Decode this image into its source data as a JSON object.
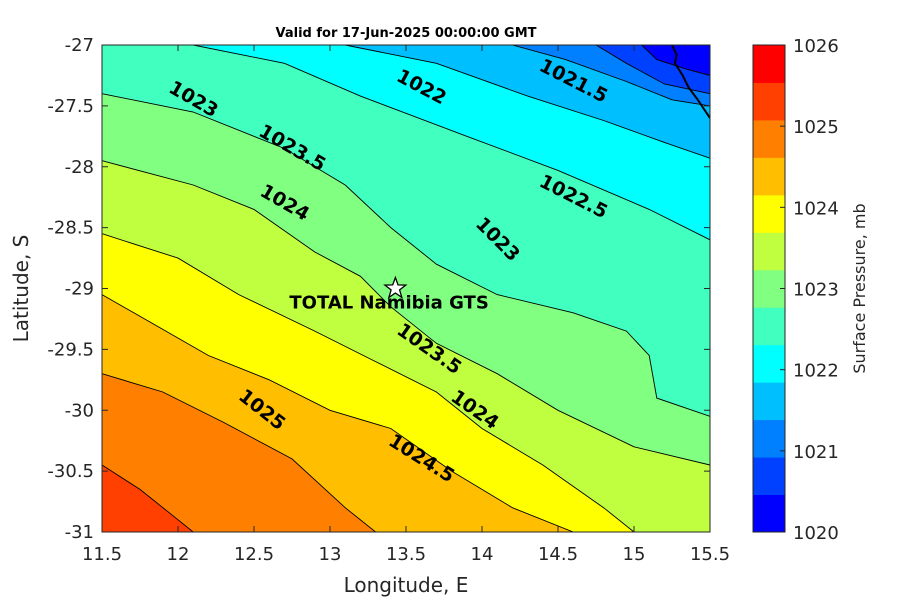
{
  "chart_data": {
    "type": "contour",
    "title": "Valid for 17-Jun-2025 00:00:00 GMT",
    "xlabel": "Longitude, E",
    "ylabel": "Latitude, S",
    "xlim": [
      11.5,
      15.5
    ],
    "ylim": [
      -31,
      -27
    ],
    "xticks": [
      "11.5",
      "12",
      "12.5",
      "13",
      "13.5",
      "14",
      "14.5",
      "15",
      "15.5"
    ],
    "yticks": [
      "-27",
      "-27.5",
      "-28",
      "-28.5",
      "-29",
      "-29.5",
      "-30",
      "-30.5",
      "-31"
    ],
    "colorbar": {
      "label": "Surface Pressure, mb",
      "range": [
        1020,
        1026
      ],
      "ticks": [
        "1020",
        "1021",
        "1022",
        "1023",
        "1024",
        "1025",
        "1026"
      ],
      "levels": [
        {
          "min": 1020.0,
          "max": 1020.5,
          "color": "#0000ff"
        },
        {
          "min": 1020.5,
          "max": 1021.0,
          "color": "#0040ff"
        },
        {
          "min": 1021.0,
          "max": 1021.5,
          "color": "#0080ff"
        },
        {
          "min": 1021.5,
          "max": 1022.0,
          "color": "#00bfff"
        },
        {
          "min": 1022.0,
          "max": 1022.5,
          "color": "#00ffff"
        },
        {
          "min": 1022.5,
          "max": 1023.0,
          "color": "#40ffbf"
        },
        {
          "min": 1023.0,
          "max": 1023.5,
          "color": "#80ff80"
        },
        {
          "min": 1023.5,
          "max": 1024.0,
          "color": "#bfff40"
        },
        {
          "min": 1024.0,
          "max": 1024.5,
          "color": "#ffff00"
        },
        {
          "min": 1024.5,
          "max": 1025.0,
          "color": "#ffbf00"
        },
        {
          "min": 1025.0,
          "max": 1025.5,
          "color": "#ff8000"
        },
        {
          "min": 1025.5,
          "max": 1026.0,
          "color": "#ff4000"
        },
        {
          "min": 1026.0,
          "max": 1026.5,
          "color": "#ff0000"
        }
      ]
    },
    "contours": [
      {
        "level": 1020.5,
        "points": [
          [
            15.05,
            -27.0
          ],
          [
            15.15,
            -27.12
          ],
          [
            15.35,
            -27.2
          ],
          [
            15.5,
            -27.25
          ]
        ]
      },
      {
        "level": 1021.0,
        "points": [
          [
            14.75,
            -27.0
          ],
          [
            14.95,
            -27.15
          ],
          [
            15.2,
            -27.32
          ],
          [
            15.5,
            -27.4
          ]
        ]
      },
      {
        "level": 1021.5,
        "points": [
          [
            14.2,
            -27.0
          ],
          [
            14.55,
            -27.12
          ],
          [
            14.95,
            -27.3
          ],
          [
            15.25,
            -27.45
          ],
          [
            15.5,
            -27.5
          ]
        ]
      },
      {
        "level": 1022.0,
        "points": [
          [
            13.1,
            -27.0
          ],
          [
            13.7,
            -27.15
          ],
          [
            14.3,
            -27.42
          ],
          [
            14.8,
            -27.62
          ],
          [
            15.2,
            -27.8
          ],
          [
            15.5,
            -27.93
          ]
        ]
      },
      {
        "level": 1022.5,
        "points": [
          [
            12.1,
            -27.0
          ],
          [
            12.7,
            -27.15
          ],
          [
            13.2,
            -27.42
          ],
          [
            13.9,
            -27.75
          ],
          [
            14.5,
            -28.03
          ],
          [
            15.1,
            -28.35
          ],
          [
            15.5,
            -28.6
          ]
        ]
      },
      {
        "level": 1023.0,
        "points": [
          [
            11.5,
            -27.4
          ],
          [
            12.1,
            -27.55
          ],
          [
            12.7,
            -27.85
          ],
          [
            13.1,
            -28.15
          ],
          [
            13.4,
            -28.5
          ],
          [
            13.7,
            -28.8
          ],
          [
            14.1,
            -29.05
          ],
          [
            14.6,
            -29.2
          ],
          [
            14.95,
            -29.35
          ],
          [
            15.1,
            -29.55
          ],
          [
            15.15,
            -29.9
          ],
          [
            15.5,
            -30.05
          ]
        ]
      },
      {
        "level": 1023.5,
        "points": [
          [
            11.5,
            -27.95
          ],
          [
            12.1,
            -28.15
          ],
          [
            12.5,
            -28.35
          ],
          [
            12.9,
            -28.7
          ],
          [
            13.2,
            -28.9
          ],
          [
            13.4,
            -29.15
          ],
          [
            13.7,
            -29.45
          ],
          [
            14.1,
            -29.7
          ],
          [
            14.5,
            -30.0
          ],
          [
            15.0,
            -30.3
          ],
          [
            15.5,
            -30.45
          ]
        ]
      },
      {
        "level": 1024.0,
        "points": [
          [
            11.5,
            -28.55
          ],
          [
            12.0,
            -28.75
          ],
          [
            12.4,
            -29.05
          ],
          [
            12.9,
            -29.35
          ],
          [
            13.3,
            -29.6
          ],
          [
            13.7,
            -29.85
          ],
          [
            14.0,
            -30.15
          ],
          [
            14.4,
            -30.45
          ],
          [
            14.8,
            -30.8
          ],
          [
            15.0,
            -31.0
          ]
        ]
      },
      {
        "level": 1024.5,
        "points": [
          [
            11.5,
            -29.05
          ],
          [
            11.85,
            -29.3
          ],
          [
            12.2,
            -29.55
          ],
          [
            12.6,
            -29.75
          ],
          [
            13.0,
            -30.0
          ],
          [
            13.4,
            -30.15
          ],
          [
            13.8,
            -30.5
          ],
          [
            14.2,
            -30.8
          ],
          [
            14.6,
            -31.0
          ]
        ]
      },
      {
        "level": 1025.0,
        "points": [
          [
            11.5,
            -29.7
          ],
          [
            11.9,
            -29.85
          ],
          [
            12.3,
            -30.1
          ],
          [
            12.75,
            -30.4
          ],
          [
            13.1,
            -30.8
          ],
          [
            13.3,
            -31.0
          ]
        ]
      },
      {
        "level": 1025.5,
        "points": [
          [
            11.5,
            -30.45
          ],
          [
            11.75,
            -30.65
          ],
          [
            11.95,
            -30.85
          ],
          [
            12.1,
            -31.0
          ]
        ]
      }
    ],
    "contour_labels": [
      {
        "text": "1023",
        "x": 12.1,
        "y": -27.45,
        "angle": 30
      },
      {
        "text": "1023.5",
        "x": 12.75,
        "y": -27.85,
        "angle": 30
      },
      {
        "text": "1024",
        "x": 12.7,
        "y": -28.3,
        "angle": 30
      },
      {
        "text": "1022",
        "x": 13.6,
        "y": -27.35,
        "angle": 28
      },
      {
        "text": "1021.5",
        "x": 14.6,
        "y": -27.3,
        "angle": 27
      },
      {
        "text": "1022.5",
        "x": 14.6,
        "y": -28.25,
        "angle": 27
      },
      {
        "text": "1023",
        "x": 14.1,
        "y": -28.6,
        "angle": 45
      },
      {
        "text": "1023.5",
        "x": 13.65,
        "y": -29.5,
        "angle": 35
      },
      {
        "text": "1024",
        "x": 13.95,
        "y": -30.0,
        "angle": 35
      },
      {
        "text": "1024.5",
        "x": 13.6,
        "y": -30.4,
        "angle": 32
      },
      {
        "text": "1025",
        "x": 12.55,
        "y": -30.0,
        "angle": 38
      }
    ],
    "site": {
      "name": "TOTAL Namibia GTS",
      "lon": 13.43,
      "lat": -29.0
    }
  }
}
